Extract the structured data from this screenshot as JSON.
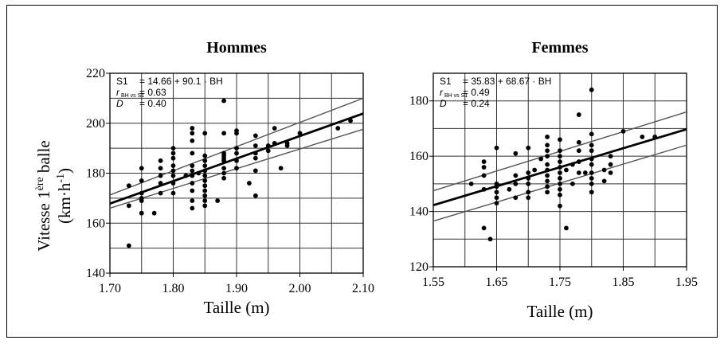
{
  "ylabel": {
    "prefix": "Vitesse 1",
    "sup": "ère",
    "suffix": " balle",
    "unit_a": "(km·h",
    "unit_sup": "-1",
    "unit_b": ")"
  },
  "chart_data": [
    {
      "type": "scatter",
      "title": "Hommes",
      "xlabel": "Taille (m)",
      "xlim": [
        1.7,
        2.1
      ],
      "ylim": [
        140,
        220
      ],
      "xticks": [
        1.7,
        1.8,
        1.9,
        2.0,
        2.1
      ],
      "xtick_labels": [
        "1.70",
        "1.80",
        "1.90",
        "2.00",
        "2.10"
      ],
      "yticks": [
        140,
        160,
        180,
        200,
        220
      ],
      "ytick_labels": [
        "140",
        "160",
        "180",
        "200",
        "220"
      ],
      "grid_x": [
        1.75,
        1.8,
        1.85,
        1.9,
        1.95,
        2.0,
        2.05
      ],
      "grid_y": [
        150,
        160,
        170,
        180,
        190,
        200,
        210
      ],
      "grid": true,
      "stats": {
        "eq_name": "S1",
        "eq": "= 14.66 + 90.1 · BH",
        "r_sym": "r",
        "r_sub": "BH vs S1",
        "r_val": "= 0.63",
        "d_sym": "D",
        "d_val": "= 0.40"
      },
      "fit": {
        "intercept": 14.66,
        "slope": 90.1
      },
      "ci": {
        "lower": [
          [
            1.7,
            166.0
          ],
          [
            2.1,
            197.6
          ]
        ],
        "upper": [
          [
            1.7,
            171.3
          ],
          [
            2.1,
            210.0
          ]
        ]
      },
      "points": [
        [
          1.73,
          151
        ],
        [
          1.73,
          167
        ],
        [
          1.73,
          175
        ],
        [
          1.75,
          164
        ],
        [
          1.75,
          169
        ],
        [
          1.75,
          170
        ],
        [
          1.75,
          172
        ],
        [
          1.75,
          177
        ],
        [
          1.75,
          182
        ],
        [
          1.77,
          164
        ],
        [
          1.78,
          172
        ],
        [
          1.78,
          176
        ],
        [
          1.78,
          179
        ],
        [
          1.78,
          182
        ],
        [
          1.78,
          185
        ],
        [
          1.8,
          172
        ],
        [
          1.8,
          176
        ],
        [
          1.8,
          179
        ],
        [
          1.8,
          181
        ],
        [
          1.8,
          183
        ],
        [
          1.8,
          186
        ],
        [
          1.8,
          188
        ],
        [
          1.8,
          190
        ],
        [
          1.82,
          179
        ],
        [
          1.83,
          166
        ],
        [
          1.83,
          169
        ],
        [
          1.83,
          173
        ],
        [
          1.83,
          176
        ],
        [
          1.83,
          179
        ],
        [
          1.83,
          181
        ],
        [
          1.83,
          183
        ],
        [
          1.83,
          188
        ],
        [
          1.83,
          193
        ],
        [
          1.83,
          196
        ],
        [
          1.83,
          198
        ],
        [
          1.84,
          180
        ],
        [
          1.85,
          167
        ],
        [
          1.85,
          169
        ],
        [
          1.85,
          171
        ],
        [
          1.85,
          173
        ],
        [
          1.85,
          175
        ],
        [
          1.85,
          177
        ],
        [
          1.85,
          179
        ],
        [
          1.85,
          181
        ],
        [
          1.85,
          183
        ],
        [
          1.85,
          185
        ],
        [
          1.85,
          187
        ],
        [
          1.85,
          196
        ],
        [
          1.87,
          169
        ],
        [
          1.88,
          178
        ],
        [
          1.88,
          180
        ],
        [
          1.88,
          182
        ],
        [
          1.88,
          185
        ],
        [
          1.88,
          186
        ],
        [
          1.88,
          187
        ],
        [
          1.88,
          188
        ],
        [
          1.88,
          196
        ],
        [
          1.88,
          209
        ],
        [
          1.9,
          182
        ],
        [
          1.9,
          185
        ],
        [
          1.9,
          188
        ],
        [
          1.9,
          190
        ],
        [
          1.9,
          196
        ],
        [
          1.9,
          197
        ],
        [
          1.92,
          176
        ],
        [
          1.93,
          171
        ],
        [
          1.93,
          181
        ],
        [
          1.93,
          186
        ],
        [
          1.93,
          188
        ],
        [
          1.93,
          191
        ],
        [
          1.93,
          195
        ],
        [
          1.95,
          189
        ],
        [
          1.95,
          191
        ],
        [
          1.96,
          192
        ],
        [
          1.96,
          198
        ],
        [
          1.97,
          182
        ],
        [
          1.98,
          191
        ],
        [
          1.98,
          192
        ],
        [
          2.0,
          196
        ],
        [
          2.06,
          198
        ],
        [
          2.08,
          201
        ]
      ]
    },
    {
      "type": "scatter",
      "title": "Femmes",
      "xlabel": "Taille (m)",
      "xlim": [
        1.55,
        1.95
      ],
      "ylim": [
        120,
        190
      ],
      "xticks": [
        1.55,
        1.65,
        1.75,
        1.85,
        1.95
      ],
      "xtick_labels": [
        "1.55",
        "1.65",
        "1.75",
        "1.85",
        "1.95"
      ],
      "yticks": [
        120,
        140,
        160,
        180
      ],
      "ytick_labels": [
        "120",
        "140",
        "160",
        "180"
      ],
      "grid_x": [
        1.6,
        1.65,
        1.7,
        1.75,
        1.8,
        1.85,
        1.9
      ],
      "grid_y": [
        130,
        140,
        150,
        160,
        170,
        180
      ],
      "grid": true,
      "stats": {
        "eq_name": "S1",
        "eq": "= 35.83 + 68.67 · BH",
        "r_sym": "r",
        "r_sub": "BH vs S1",
        "r_val": "= 0.49",
        "d_sym": "D",
        "d_val": "= 0.24"
      },
      "fit": {
        "intercept": 35.83,
        "slope": 68.67
      },
      "ci": {
        "lower": [
          [
            1.55,
            136.5
          ],
          [
            1.95,
            164.0
          ]
        ],
        "upper": [
          [
            1.55,
            147.5
          ],
          [
            1.95,
            176.0
          ]
        ]
      },
      "points": [
        [
          1.61,
          150
        ],
        [
          1.63,
          134
        ],
        [
          1.63,
          148
        ],
        [
          1.63,
          153
        ],
        [
          1.63,
          156
        ],
        [
          1.63,
          158
        ],
        [
          1.64,
          130
        ],
        [
          1.65,
          143
        ],
        [
          1.65,
          145
        ],
        [
          1.65,
          147
        ],
        [
          1.65,
          149
        ],
        [
          1.65,
          150
        ],
        [
          1.65,
          163
        ],
        [
          1.67,
          148
        ],
        [
          1.68,
          145
        ],
        [
          1.68,
          150
        ],
        [
          1.68,
          153
        ],
        [
          1.68,
          161
        ],
        [
          1.7,
          145
        ],
        [
          1.7,
          147
        ],
        [
          1.7,
          150
        ],
        [
          1.7,
          152
        ],
        [
          1.7,
          154
        ],
        [
          1.7,
          163
        ],
        [
          1.71,
          155
        ],
        [
          1.72,
          159
        ],
        [
          1.73,
          147
        ],
        [
          1.73,
          149
        ],
        [
          1.73,
          151
        ],
        [
          1.73,
          153
        ],
        [
          1.73,
          155
        ],
        [
          1.73,
          157
        ],
        [
          1.73,
          160
        ],
        [
          1.73,
          162
        ],
        [
          1.73,
          164
        ],
        [
          1.73,
          167
        ],
        [
          1.75,
          142
        ],
        [
          1.75,
          146
        ],
        [
          1.75,
          148
        ],
        [
          1.75,
          150
        ],
        [
          1.75,
          152
        ],
        [
          1.75,
          154
        ],
        [
          1.75,
          156
        ],
        [
          1.75,
          158
        ],
        [
          1.75,
          160
        ],
        [
          1.75,
          162
        ],
        [
          1.75,
          166
        ],
        [
          1.76,
          134
        ],
        [
          1.76,
          155
        ],
        [
          1.77,
          150
        ],
        [
          1.77,
          157
        ],
        [
          1.78,
          154
        ],
        [
          1.78,
          158
        ],
        [
          1.78,
          162
        ],
        [
          1.78,
          165
        ],
        [
          1.78,
          175
        ],
        [
          1.79,
          154
        ],
        [
          1.8,
          147
        ],
        [
          1.8,
          150
        ],
        [
          1.8,
          152
        ],
        [
          1.8,
          154
        ],
        [
          1.8,
          157
        ],
        [
          1.8,
          159
        ],
        [
          1.8,
          162
        ],
        [
          1.8,
          164
        ],
        [
          1.8,
          168
        ],
        [
          1.8,
          184
        ],
        [
          1.82,
          151
        ],
        [
          1.82,
          155
        ],
        [
          1.83,
          154
        ],
        [
          1.83,
          157
        ],
        [
          1.83,
          160
        ],
        [
          1.85,
          169
        ],
        [
          1.88,
          167
        ],
        [
          1.9,
          167
        ]
      ]
    }
  ]
}
